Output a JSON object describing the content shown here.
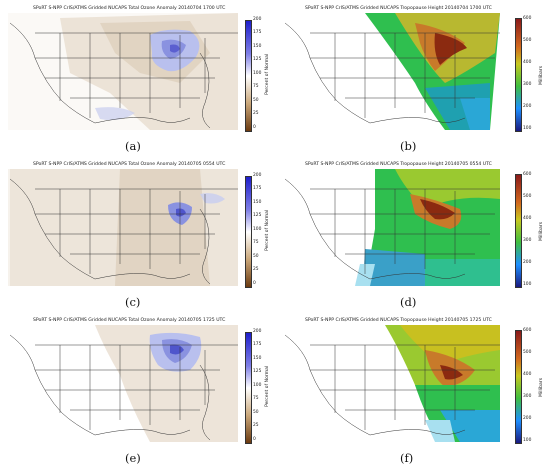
{
  "panels": [
    {
      "id": "a",
      "caption": "(a)",
      "title": "SPoRT S-NPP CrIS/ATMS Gridded NUCAPS Total Ozone Anomaly 20140704 1700 UTC",
      "kind": "ozone",
      "cbar_label": "Percent of Normal",
      "ticks": [
        "200",
        "175",
        "150",
        "125",
        "100",
        "75",
        "50",
        "25",
        "0"
      ]
    },
    {
      "id": "b",
      "caption": "(b)",
      "title": "SPoRT S-NPP CrIS/ATMS Gridded NUCAPS Tropopause Height 20140704 1700 UTC",
      "kind": "tropo",
      "cbar_label": "Millibars",
      "ticks": [
        "600",
        "500",
        "400",
        "300",
        "200",
        "100"
      ]
    },
    {
      "id": "c",
      "caption": "(c)",
      "title": "SPoRT S-NPP CrIS/ATMS Gridded NUCAPS Total Ozone Anomaly 20140705 0554 UTC",
      "kind": "ozone",
      "cbar_label": "Percent of Normal",
      "ticks": [
        "200",
        "175",
        "150",
        "125",
        "100",
        "75",
        "50",
        "25",
        "0"
      ]
    },
    {
      "id": "d",
      "caption": "(d)",
      "title": "SPoRT S-NPP CrIS/ATMS Gridded NUCAPS Tropopause Height 20140705 0554 UTC",
      "kind": "tropo",
      "cbar_label": "Millibars",
      "ticks": [
        "600",
        "500",
        "400",
        "300",
        "200",
        "100"
      ]
    },
    {
      "id": "e",
      "caption": "(e)",
      "title": "SPoRT S-NPP CrIS/ATMS Gridded NUCAPS Total Ozone Anomaly 20140705 1725 UTC",
      "kind": "ozone",
      "cbar_label": "Percent of Normal",
      "ticks": [
        "200",
        "175",
        "150",
        "125",
        "100",
        "75",
        "50",
        "25",
        "0"
      ]
    },
    {
      "id": "f",
      "caption": "(f)",
      "title": "SPoRT S-NPP CrIS/ATMS Gridded NUCAPS Tropopause Height 20140705 1725 UTC",
      "kind": "tropo",
      "cbar_label": "Millibars",
      "ticks": [
        "600",
        "500",
        "400",
        "300",
        "200",
        "100"
      ]
    }
  ],
  "colors": {
    "ozone_low": "#6b3a10",
    "ozone_normal": "#ffffff",
    "ozone_high": "#1f1fcc",
    "tropo_scale": [
      "#1a1a80",
      "#1e90ff",
      "#2fbf5f",
      "#3fbf3f",
      "#c8c820",
      "#d2691e",
      "#8b1a1a"
    ]
  }
}
